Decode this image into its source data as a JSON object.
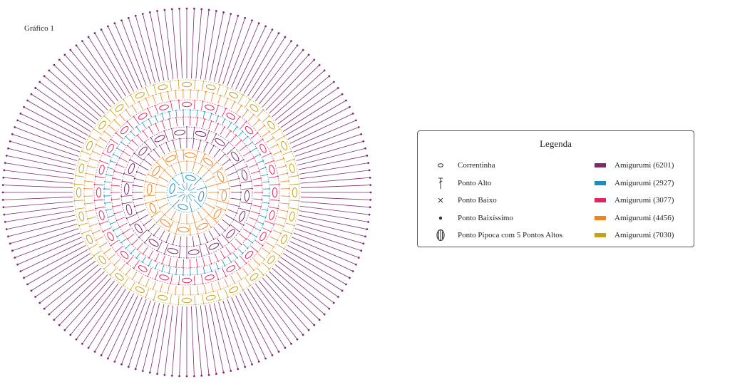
{
  "title": "Gráfico 1",
  "legend": {
    "title": "Legenda",
    "symbols": [
      {
        "icon": "chain-icon",
        "label": "Correntinha"
      },
      {
        "icon": "double-crochet-icon",
        "label": "Ponto Alto"
      },
      {
        "icon": "single-crochet-icon",
        "label": "Ponto Baixo"
      },
      {
        "icon": "slip-stitch-icon",
        "label": "Ponto Baixíssimo"
      },
      {
        "icon": "popcorn-stitch-icon",
        "label": "Ponto Pipoca com 5 Pontos Altos"
      }
    ],
    "colors": [
      {
        "label": "Amigurumi (6201)",
        "color": "#7e2a6f"
      },
      {
        "label": "Amigurumi (2927)",
        "color": "#1b8ebf"
      },
      {
        "label": "Amigurumi (3077)",
        "color": "#e5265c"
      },
      {
        "label": "Amigurumi (4456)",
        "color": "#f4821f"
      },
      {
        "label": "Amigurumi (7030)",
        "color": "#c4a21c"
      }
    ]
  }
}
